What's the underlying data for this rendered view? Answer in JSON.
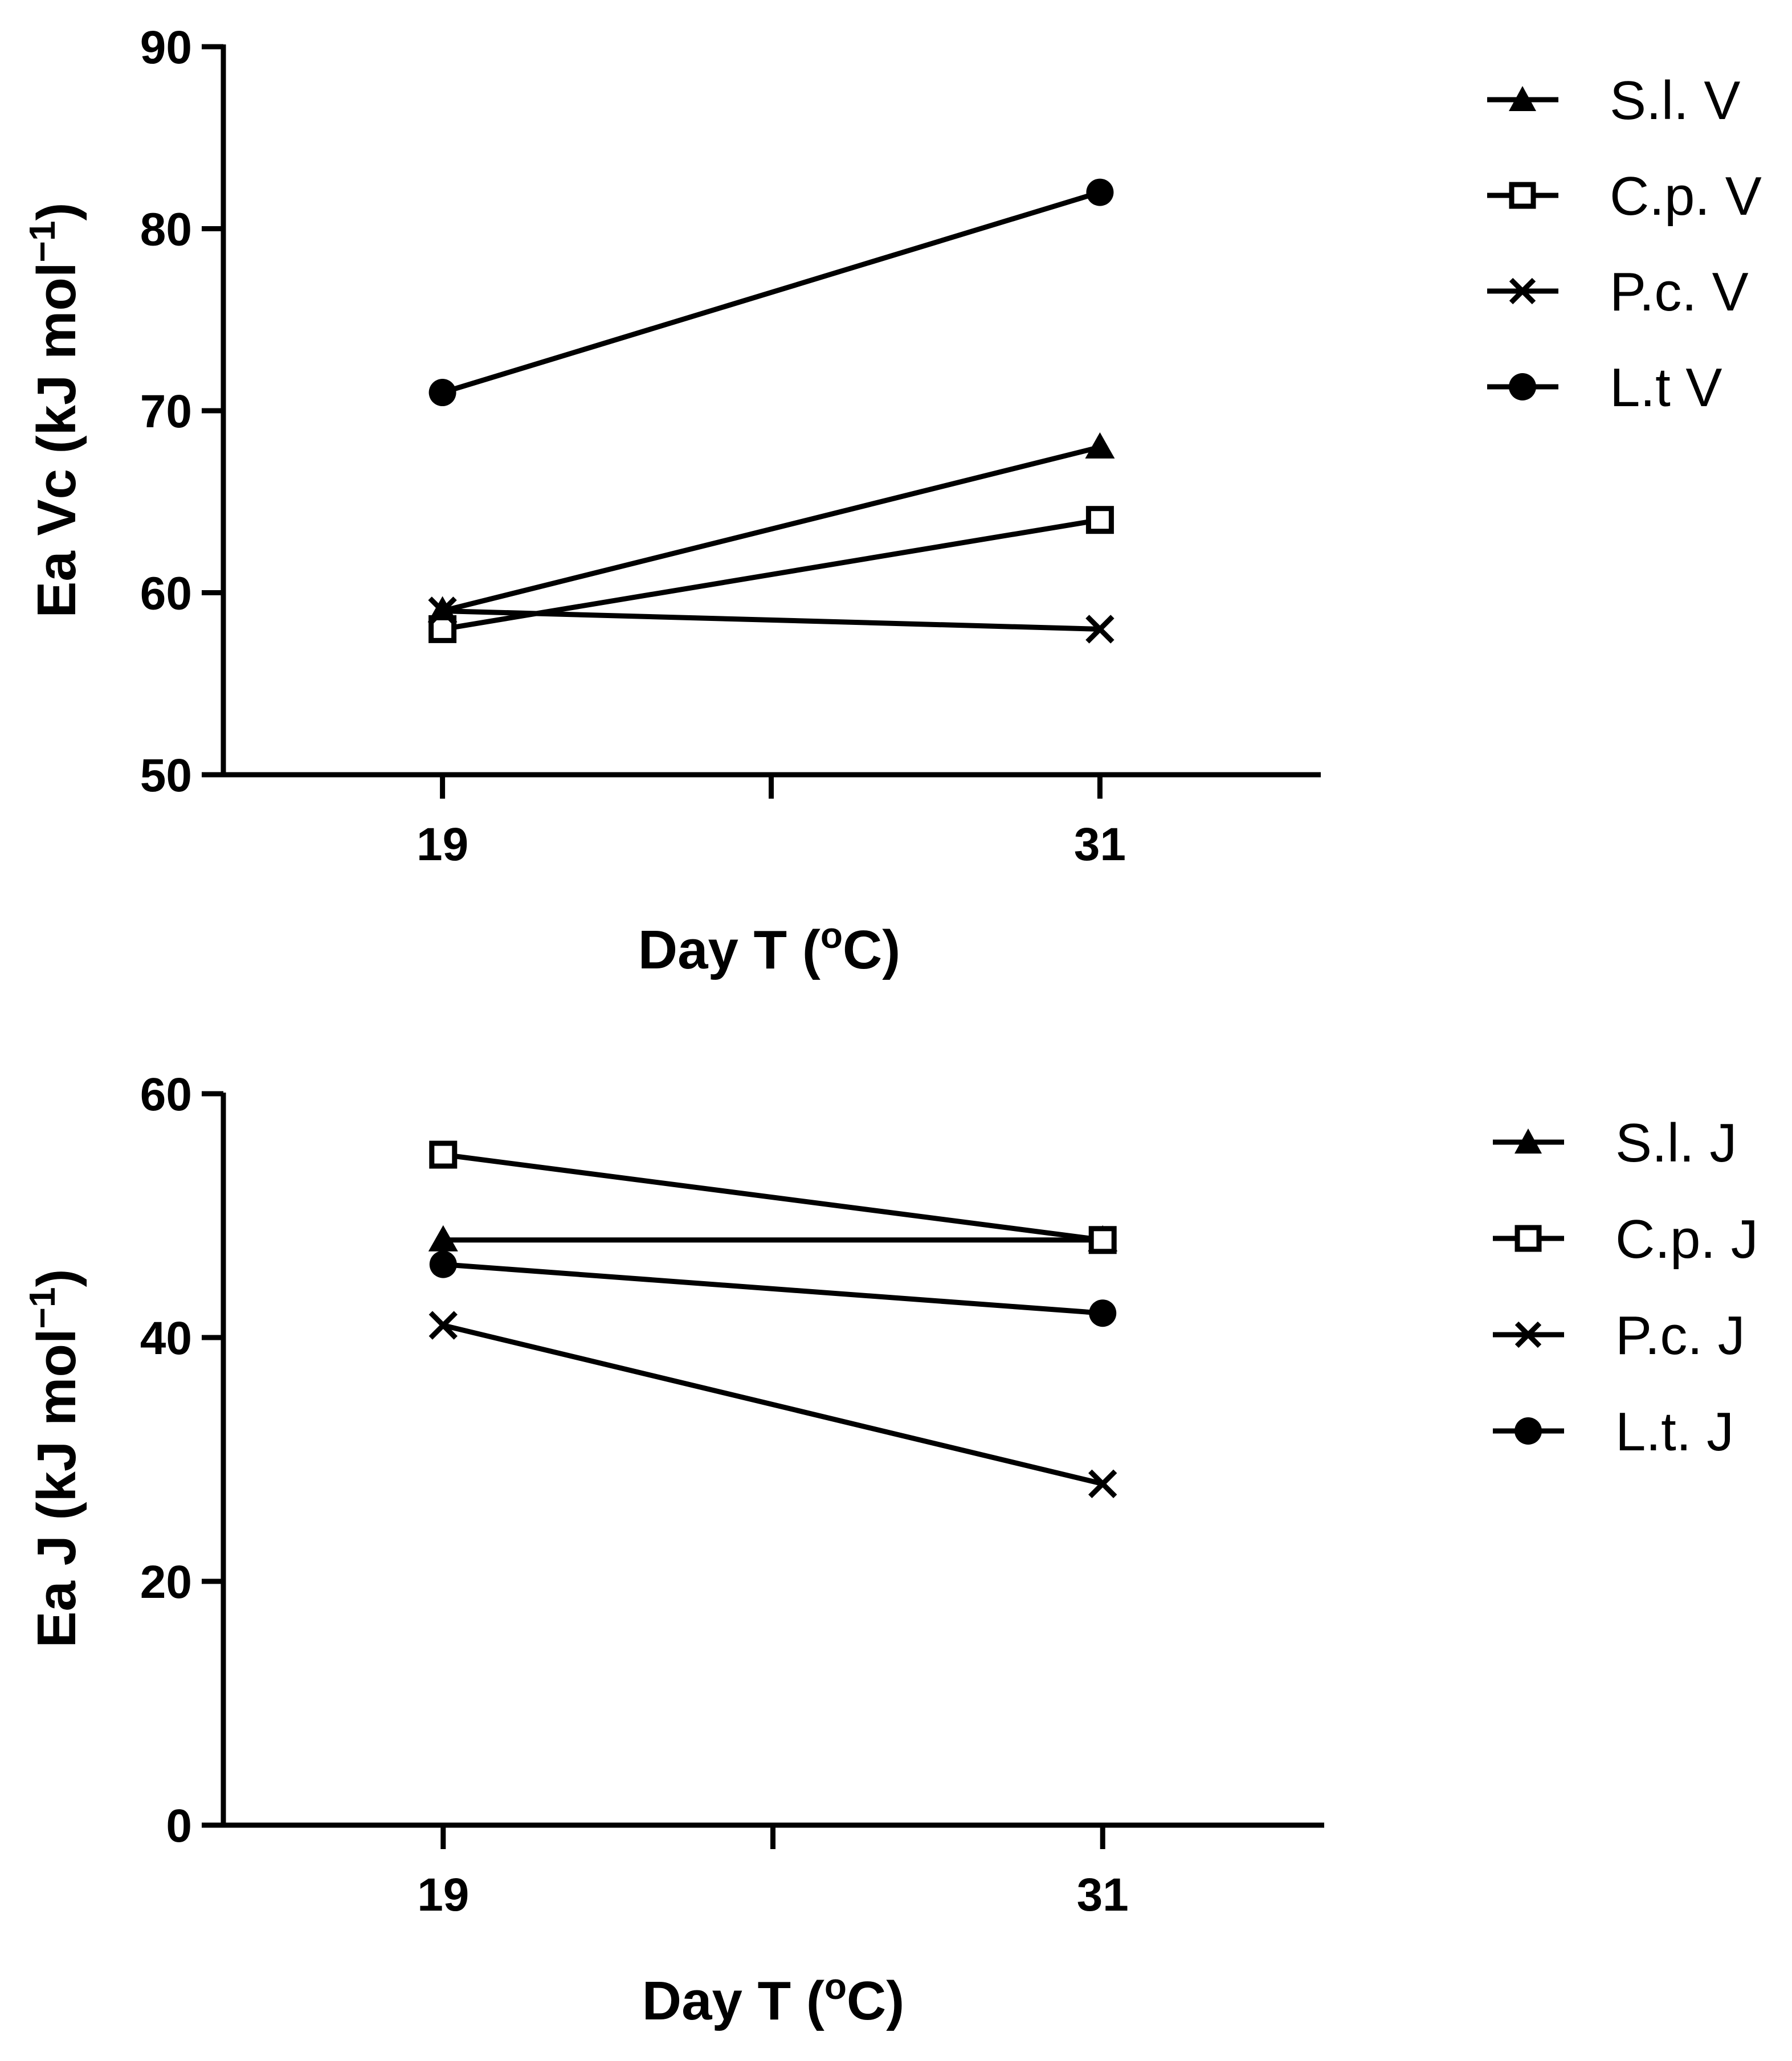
{
  "chart_data": [
    {
      "type": "line",
      "x": [
        19,
        31
      ],
      "x_tick_labels": [
        "19",
        "31"
      ],
      "xlim": [
        15,
        35
      ],
      "ylim": [
        50,
        90
      ],
      "y_ticks": [
        50,
        60,
        70,
        80,
        90
      ],
      "xlabel": {
        "main": "Day T (",
        "sup": "o",
        "tail": "C)"
      },
      "ylabel": {
        "main": "Ea Vc (kJ mol",
        "sup": "−1",
        "tail": ")"
      },
      "legend_position": "top-right",
      "grid": false,
      "series": [
        {
          "name": "S.l. V",
          "marker": "triangle",
          "values": [
            59,
            68
          ]
        },
        {
          "name": "C.p. V",
          "marker": "open-square",
          "values": [
            58,
            64
          ]
        },
        {
          "name": "P.c. V",
          "marker": "x",
          "values": [
            59,
            58
          ]
        },
        {
          "name": "L.t V",
          "marker": "circle",
          "values": [
            71,
            82
          ]
        }
      ]
    },
    {
      "type": "line",
      "x": [
        19,
        31
      ],
      "x_tick_labels": [
        "19",
        "31"
      ],
      "xlim": [
        15,
        35
      ],
      "ylim": [
        0,
        60
      ],
      "y_ticks": [
        0,
        20,
        40,
        60
      ],
      "xlabel": {
        "main": "Day T (",
        "sup": "o",
        "tail": "C)"
      },
      "ylabel": {
        "main": "Ea J (kJ mol",
        "sup": "−1",
        "tail": ")"
      },
      "legend_position": "top-right",
      "grid": false,
      "series": [
        {
          "name": "S.l. J",
          "marker": "triangle",
          "values": [
            48,
            48
          ]
        },
        {
          "name": "C.p. J",
          "marker": "open-square",
          "values": [
            55,
            48
          ]
        },
        {
          "name": "P.c. J",
          "marker": "x",
          "values": [
            41,
            28
          ]
        },
        {
          "name": "L.t. J",
          "marker": "circle",
          "values": [
            46,
            42
          ]
        }
      ]
    }
  ]
}
